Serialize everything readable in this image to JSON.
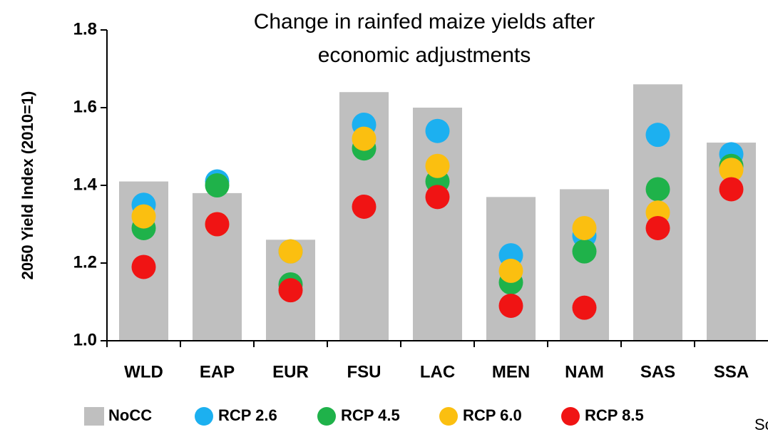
{
  "chart_data": {
    "type": "bar",
    "title_lines": [
      "Change in rainfed maize yields after",
      "economic adjustments"
    ],
    "y_label": "2050 Yield Index (2010=1)",
    "categories": [
      "WLD",
      "EAP",
      "EUR",
      "FSU",
      "LAC",
      "MEN",
      "NAM",
      "SAS",
      "SSA"
    ],
    "series": [
      {
        "name": "NoCC",
        "type": "bar",
        "color": "#bfbfbf",
        "values": [
          1.41,
          1.38,
          1.26,
          1.64,
          1.6,
          1.37,
          1.39,
          1.66,
          1.51
        ]
      },
      {
        "name": "RCP 2.6",
        "type": "scatter",
        "color": "#1cb0f0",
        "values": [
          1.35,
          1.41,
          1.23,
          1.556,
          1.54,
          1.22,
          1.27,
          1.53,
          1.48
        ]
      },
      {
        "name": "RCP 4.5",
        "type": "scatter",
        "color": "#1fb24a",
        "values": [
          1.29,
          1.4,
          1.145,
          1.495,
          1.41,
          1.15,
          1.23,
          1.39,
          1.45
        ]
      },
      {
        "name": "RCP 6.0",
        "type": "scatter",
        "color": "#fbbf10",
        "values": [
          1.32,
          1.3,
          1.23,
          1.52,
          1.45,
          1.18,
          1.29,
          1.33,
          1.44
        ]
      },
      {
        "name": "RCP 8.5",
        "type": "scatter",
        "color": "#f01414",
        "values": [
          1.19,
          1.3,
          1.13,
          1.345,
          1.37,
          1.09,
          1.085,
          1.29,
          1.39
        ]
      }
    ],
    "ylim": [
      1,
      1.8
    ],
    "yticks": [
      {
        "value": 1,
        "label": "1.0"
      },
      1.2,
      1.4,
      1.6,
      1.8
    ],
    "grid": false,
    "legend": "bottom",
    "annotation": "So"
  }
}
